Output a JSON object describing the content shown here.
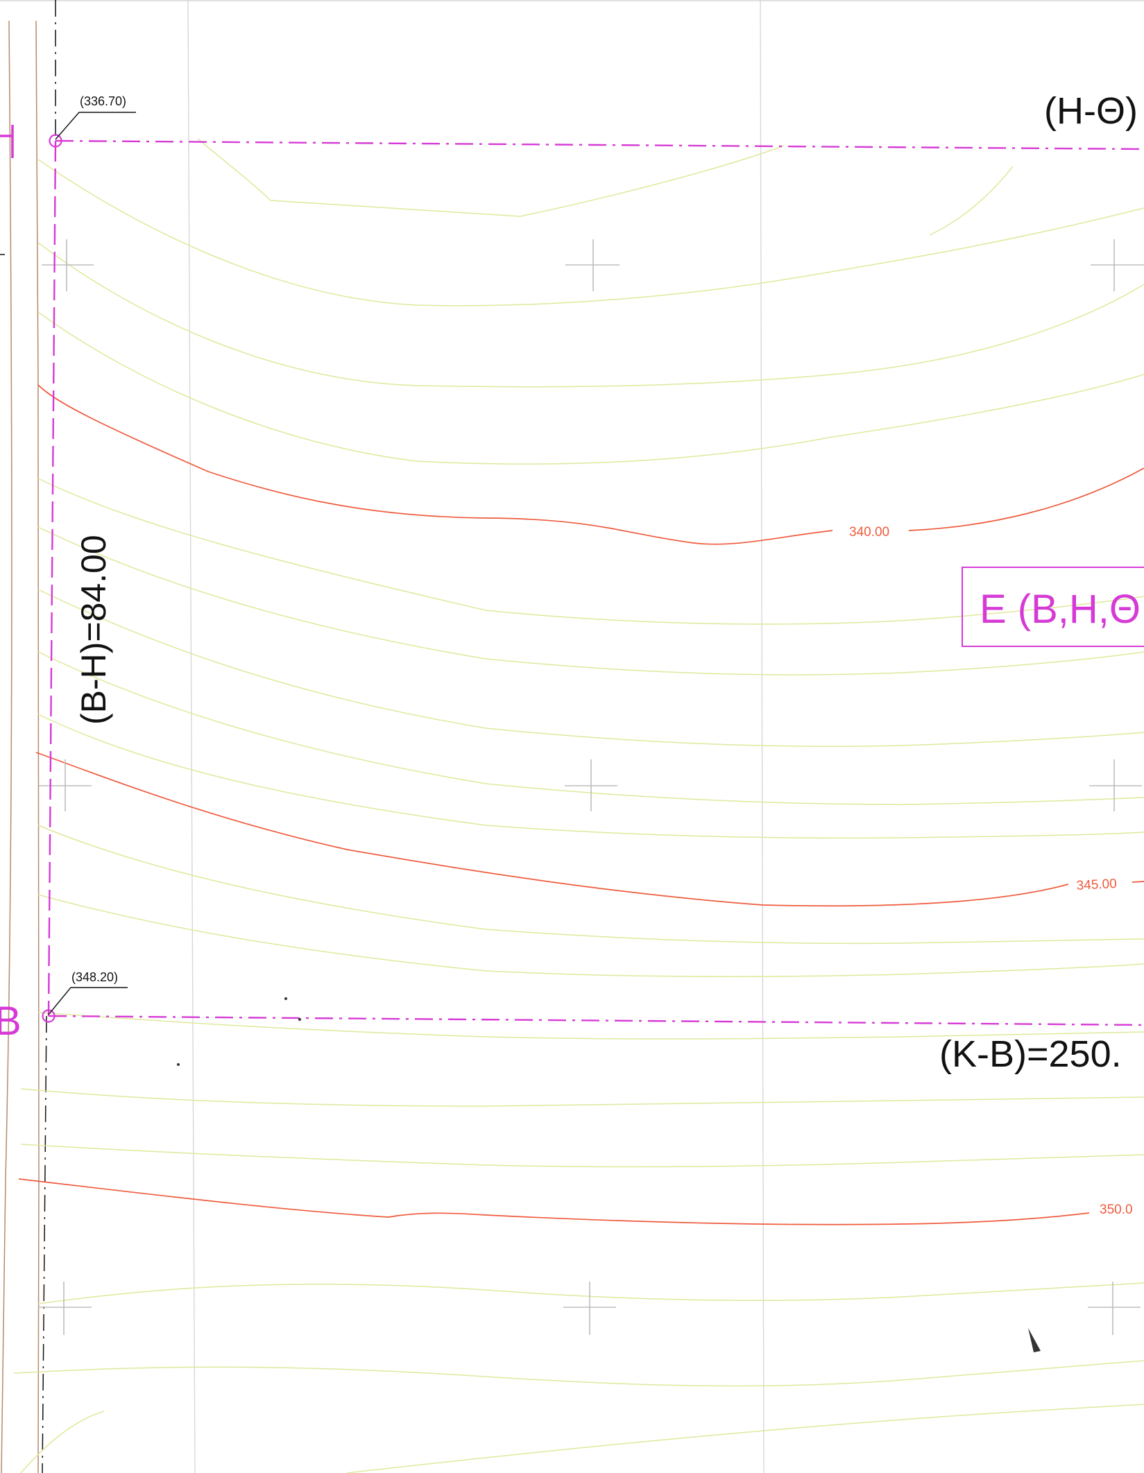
{
  "colors": {
    "background": "#ffffff",
    "contour_minor": "#dfe89a",
    "contour_major": "#ef5a3c",
    "boundary": "#d63ad6",
    "road_edge": "#b58a6a",
    "axis": "#111111",
    "grid": "#bdbdbd",
    "text": "#111111"
  },
  "points": {
    "H": {
      "label": "H",
      "elevation": "(336.70)"
    },
    "B": {
      "label": "B",
      "elevation": "(348.20)"
    }
  },
  "dimensions": {
    "bh": "(B-H)=84.00",
    "kb": "(K-B)=250.",
    "ht": "(H-Θ)"
  },
  "parcel_label": "E (B,H,Θ",
  "contour_labels": [
    "340.00",
    "345.00",
    "350.0"
  ]
}
